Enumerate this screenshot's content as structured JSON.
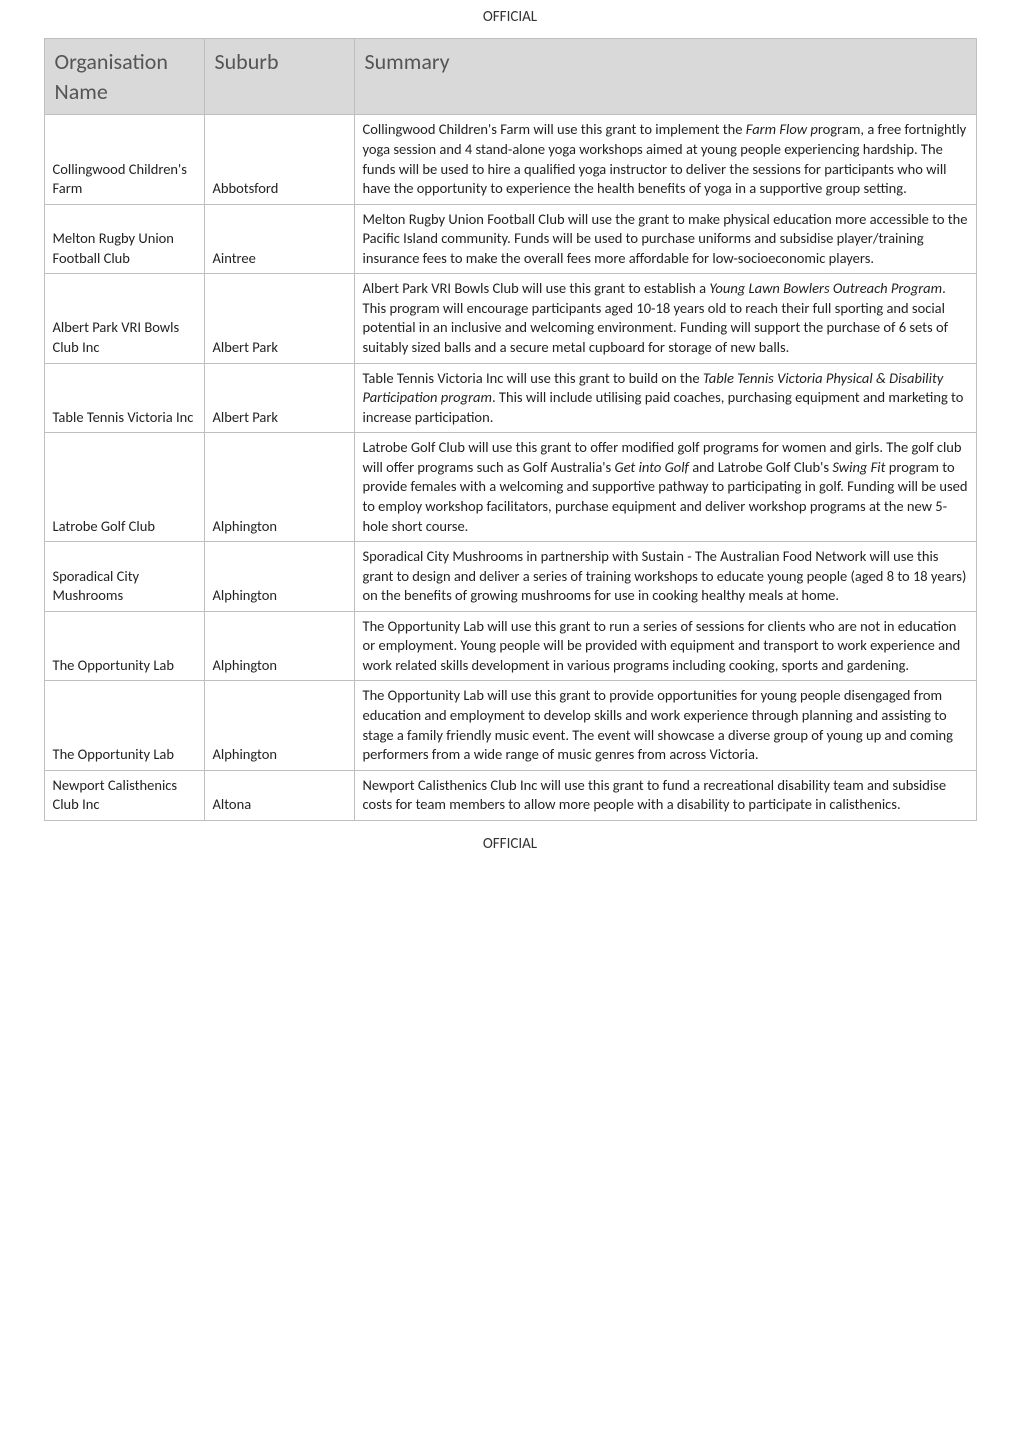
{
  "header_label": "OFFICIAL",
  "footer_label": "OFFICIAL",
  "table": {
    "columns": {
      "org": "Organisation Name",
      "suburb": "Suburb",
      "summary": "Summary"
    },
    "rows": [
      {
        "org": "Collingwood Children's Farm",
        "suburb": "Abbotsford",
        "summary_pre": "Collingwood Children's Farm will use this grant to implement the ",
        "summary_it": "Farm Flow p",
        "summary_post": "rogram, a free fortnightly yoga session and 4 stand-alone yoga workshops aimed at young people experiencing hardship. The funds will be used to hire a qualified yoga instructor to deliver the sessions for participants who will have the opportunity to experience the health benefits of yoga in a supportive group setting."
      },
      {
        "org": "Melton Rugby Union Football Club",
        "suburb": "Aintree",
        "summary_pre": "Melton Rugby Union Football Club will use the grant to make physical education more accessible to the Pacific Island community. Funds will be used to purchase uniforms and subsidise player/training insurance fees to make the overall fees more affordable for low-socioeconomic players.",
        "summary_it": "",
        "summary_post": ""
      },
      {
        "org": "Albert Park VRI Bowls Club Inc",
        "suburb": "Albert Park",
        "summary_pre": "Albert Park VRI Bowls Club will use this grant to establish a ",
        "summary_it": "Young Lawn Bowlers Outreach Program",
        "summary_post": ". This program will encourage participants aged 10-18 years old to reach their full sporting and social potential in an inclusive and welcoming environment. Funding will support the purchase of 6 sets of suitably sized balls and a secure metal cupboard for storage of new balls."
      },
      {
        "org": "Table Tennis Victoria Inc",
        "suburb": "Albert Park",
        "summary_pre": "Table Tennis Victoria Inc will use this grant to build on the ",
        "summary_it": "Table Tennis Victoria Physical & Disability Participation program",
        "summary_post": ". This will include utilising paid coaches, purchasing equipment and marketing to increase participation."
      },
      {
        "org": "Latrobe Golf Club",
        "suburb": "Alphington",
        "summary_pre": "Latrobe Golf Club will use this grant to offer modified golf programs for women and girls. The golf club will offer programs such as Golf Australia's ",
        "summary_it": "Get into Golf",
        "summary_post": " and Latrobe Golf Club's ",
        "summary_it2": "Swing Fit",
        "summary_post2": " program to provide females with a welcoming and supportive pathway to participating in golf. Funding will be used to employ workshop facilitators, purchase equipment and deliver workshop programs at the new 5-hole short course."
      },
      {
        "org": "Sporadical City Mushrooms",
        "suburb": "Alphington",
        "summary_pre": "Sporadical City Mushrooms in partnership with Sustain - The Australian Food Network will use this grant to design and deliver a series of training workshops to educate young people (aged 8 to 18 years) on the benefits of growing mushrooms for use in cooking healthy meals at home.",
        "summary_it": "",
        "summary_post": ""
      },
      {
        "org": "The Opportunity Lab",
        "suburb": "Alphington",
        "summary_pre": "The Opportunity Lab will use this grant to run a series of sessions for clients who are not in education or employment. Young people will be provided with equipment and transport to work experience and work related skills development in various programs including cooking, sports and gardening.",
        "summary_it": "",
        "summary_post": ""
      },
      {
        "org": "The Opportunity Lab",
        "suburb": "Alphington",
        "summary_pre": "The Opportunity Lab will use this grant to provide opportunities for young people disengaged from education and employment to develop skills and work experience through planning and assisting to stage a family friendly music event. The event will showcase a diverse group of young up and coming performers from a wide range of music genres from across Victoria.",
        "summary_it": "",
        "summary_post": ""
      },
      {
        "org": "Newport Calisthenics Club Inc",
        "suburb": "Altona",
        "summary_pre": "Newport Calisthenics Club Inc will use this grant to fund a recreational disability team and subsidise costs for team members to allow more people with a disability to participate in calisthenics.",
        "summary_it": "",
        "summary_post": ""
      }
    ]
  }
}
